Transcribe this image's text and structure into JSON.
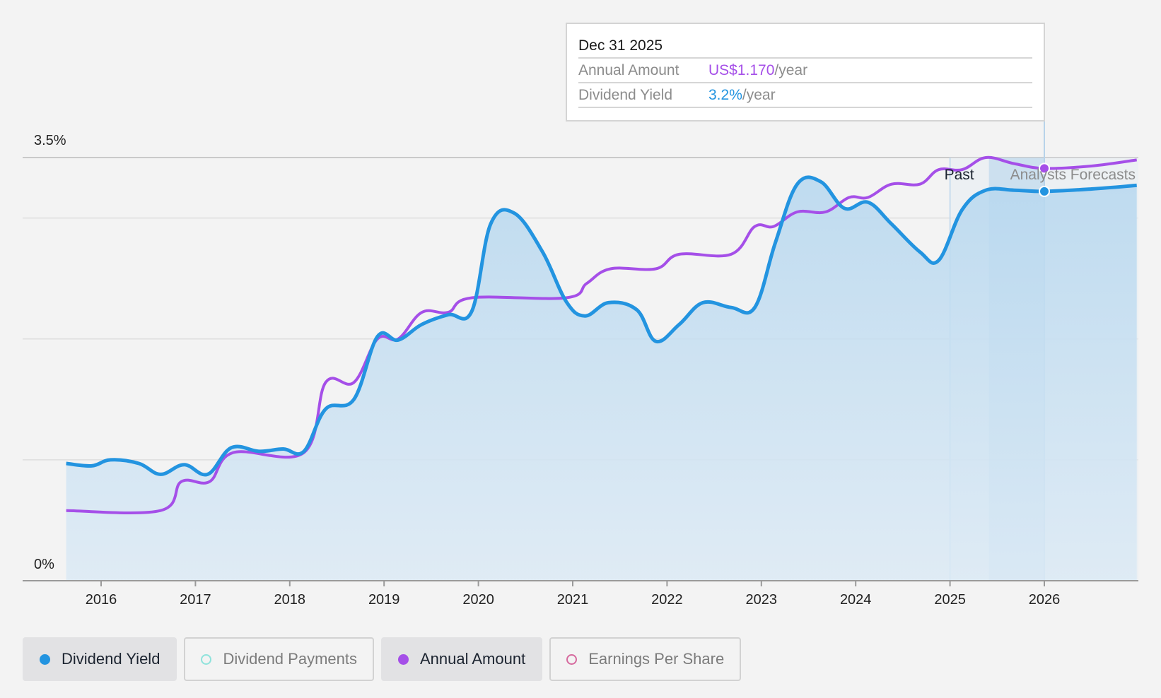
{
  "chart_data": {
    "type": "line",
    "x_ticks": [
      "2016",
      "2017",
      "2018",
      "2019",
      "2020",
      "2021",
      "2022",
      "2023",
      "2024",
      "2025",
      "2026"
    ],
    "y_ticks": [
      "0%",
      "3.5%"
    ],
    "ylim": [
      0,
      3.5
    ],
    "series": [
      {
        "name": "Dividend Yield",
        "color": "#2394e0",
        "unit": "%",
        "points": [
          [
            2015.63,
            0.97
          ],
          [
            2015.9,
            0.95
          ],
          [
            2016.1,
            1.0
          ],
          [
            2016.4,
            0.97
          ],
          [
            2016.63,
            0.88
          ],
          [
            2016.88,
            0.96
          ],
          [
            2017.13,
            0.88
          ],
          [
            2017.38,
            1.1
          ],
          [
            2017.68,
            1.07
          ],
          [
            2017.93,
            1.09
          ],
          [
            2018.15,
            1.07
          ],
          [
            2018.38,
            1.42
          ],
          [
            2018.68,
            1.5
          ],
          [
            2018.93,
            2.02
          ],
          [
            2019.15,
            1.99
          ],
          [
            2019.4,
            2.12
          ],
          [
            2019.68,
            2.2
          ],
          [
            2019.93,
            2.23
          ],
          [
            2020.13,
            2.95
          ],
          [
            2020.38,
            3.04
          ],
          [
            2020.68,
            2.72
          ],
          [
            2020.93,
            2.31
          ],
          [
            2021.13,
            2.19
          ],
          [
            2021.38,
            2.3
          ],
          [
            2021.68,
            2.24
          ],
          [
            2021.88,
            1.98
          ],
          [
            2022.13,
            2.12
          ],
          [
            2022.38,
            2.3
          ],
          [
            2022.68,
            2.26
          ],
          [
            2022.93,
            2.26
          ],
          [
            2023.15,
            2.8
          ],
          [
            2023.38,
            3.28
          ],
          [
            2023.63,
            3.3
          ],
          [
            2023.88,
            3.08
          ],
          [
            2024.13,
            3.13
          ],
          [
            2024.38,
            2.95
          ],
          [
            2024.68,
            2.72
          ],
          [
            2024.88,
            2.65
          ],
          [
            2025.13,
            3.07
          ],
          [
            2025.38,
            3.23
          ],
          [
            2025.68,
            3.23
          ],
          [
            2026.0,
            3.22
          ],
          [
            2026.5,
            3.24
          ],
          [
            2026.98,
            3.27
          ]
        ]
      },
      {
        "name": "Annual Amount",
        "color": "#a54fe8",
        "unit": "US$",
        "points": [
          [
            2015.63,
            0.58
          ],
          [
            2016.63,
            0.58
          ],
          [
            2016.85,
            0.82
          ],
          [
            2017.15,
            0.82
          ],
          [
            2017.4,
            1.06
          ],
          [
            2018.15,
            1.06
          ],
          [
            2018.38,
            1.64
          ],
          [
            2018.68,
            1.64
          ],
          [
            2018.93,
            2.0
          ],
          [
            2019.15,
            2.0
          ],
          [
            2019.4,
            2.22
          ],
          [
            2019.68,
            2.22
          ],
          [
            2019.93,
            2.34
          ],
          [
            2020.93,
            2.34
          ],
          [
            2021.15,
            2.46
          ],
          [
            2021.4,
            2.58
          ],
          [
            2021.88,
            2.58
          ],
          [
            2022.13,
            2.7
          ],
          [
            2022.68,
            2.7
          ],
          [
            2022.93,
            2.93
          ],
          [
            2023.13,
            2.93
          ],
          [
            2023.38,
            3.05
          ],
          [
            2023.68,
            3.05
          ],
          [
            2023.93,
            3.17
          ],
          [
            2024.13,
            3.17
          ],
          [
            2024.38,
            3.28
          ],
          [
            2024.68,
            3.28
          ],
          [
            2024.88,
            3.4
          ],
          [
            2025.13,
            3.4
          ],
          [
            2025.38,
            3.5
          ],
          [
            2025.68,
            3.45
          ],
          [
            2026.0,
            3.41
          ],
          [
            2026.5,
            3.43
          ],
          [
            2026.98,
            3.48
          ]
        ]
      }
    ],
    "regions": {
      "past_label": "Past",
      "forecast_label": "Analysts Forecasts",
      "divider_x": 2025.0,
      "current_x": 2026.0
    },
    "tooltip": {
      "date": "Dec 31 2025",
      "rows": [
        {
          "label": "Annual Amount",
          "value": "US$1.170",
          "unit": "/year",
          "color": "#a54fe8"
        },
        {
          "label": "Dividend Yield",
          "value": "3.2%",
          "unit": "/year",
          "color": "#2394e0"
        }
      ]
    }
  },
  "legend": [
    {
      "label": "Dividend Yield",
      "active": true,
      "dot_color": "#2394e0",
      "dot_style": "filled"
    },
    {
      "label": "Dividend Payments",
      "active": false,
      "dot_color": "#8fe3dc",
      "dot_style": "ring"
    },
    {
      "label": "Annual Amount",
      "active": true,
      "dot_color": "#a54fe8",
      "dot_style": "filled"
    },
    {
      "label": "Earnings Per Share",
      "active": false,
      "dot_color": "#d66a9e",
      "dot_style": "ring"
    }
  ]
}
